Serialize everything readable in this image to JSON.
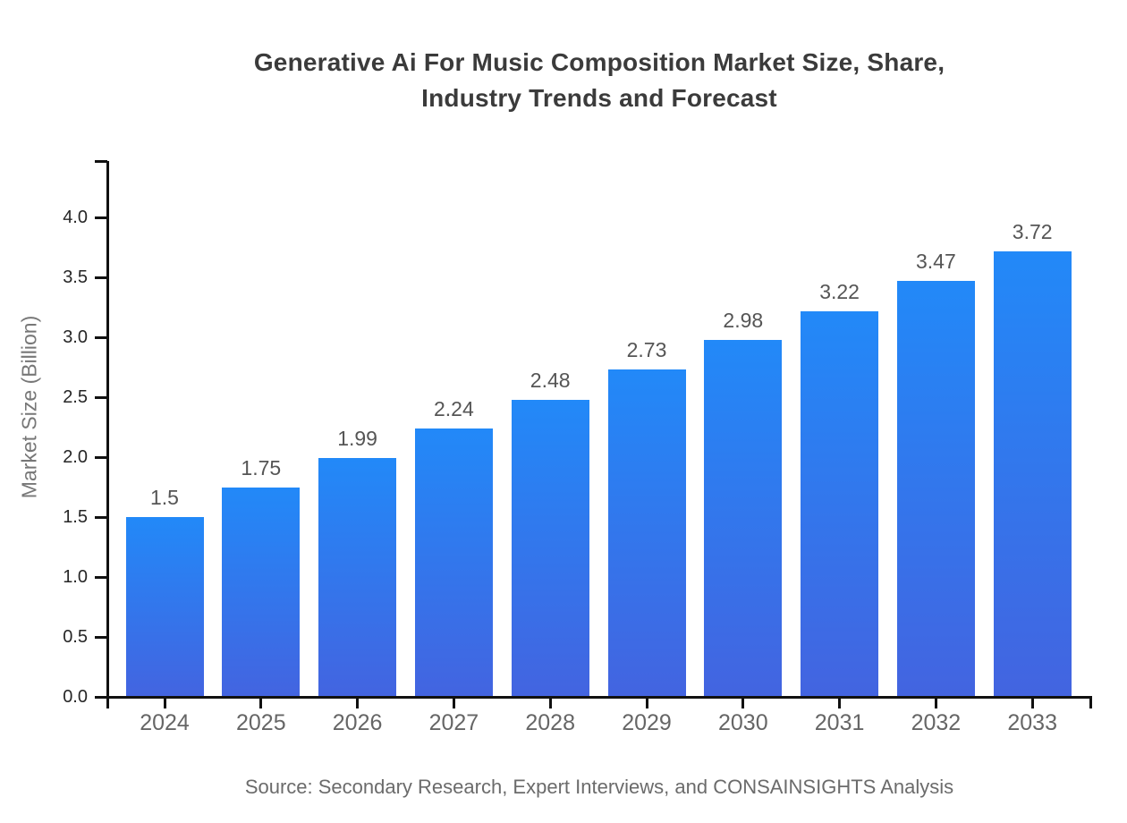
{
  "page": {
    "background": "#ffffff"
  },
  "header": {
    "title": "Generative Ai For Music Composition Market Size, Share, Industry Trends and Forecast",
    "title_lines": [
      "Generative Ai For Music Composition Market Size, Share,",
      "Industry Trends and Forecast"
    ]
  },
  "footer": {
    "source": "Source: Secondary Research, Expert Interviews, and CONSAINSIGHTS Analysis"
  },
  "chart_data": {
    "type": "bar",
    "title": "Generative Ai For Music Composition Market Size, Share, Industry Trends and Forecast",
    "categories": [
      "2024",
      "2025",
      "2026",
      "2027",
      "2028",
      "2029",
      "2030",
      "2031",
      "2032",
      "2033"
    ],
    "values": [
      1.5,
      1.75,
      1.99,
      2.24,
      2.48,
      2.73,
      2.98,
      3.22,
      3.47,
      3.72
    ],
    "value_labels": [
      "1.5",
      "1.75",
      "1.99",
      "2.24",
      "2.48",
      "2.73",
      "2.98",
      "3.22",
      "3.47",
      "3.72"
    ],
    "xlabel": "",
    "ylabel": "Market Size (Billion)",
    "ylim": [
      0,
      4.0
    ],
    "yticks": [
      "0.0",
      "0.5",
      "1.0",
      "1.5",
      "2.0",
      "2.5",
      "3.0",
      "3.5",
      "4.0"
    ],
    "grid": false,
    "legend": "none",
    "bar_color_top": "#2289F8",
    "bar_color_bottom": "#4364E0",
    "axis_color": "#111111"
  }
}
